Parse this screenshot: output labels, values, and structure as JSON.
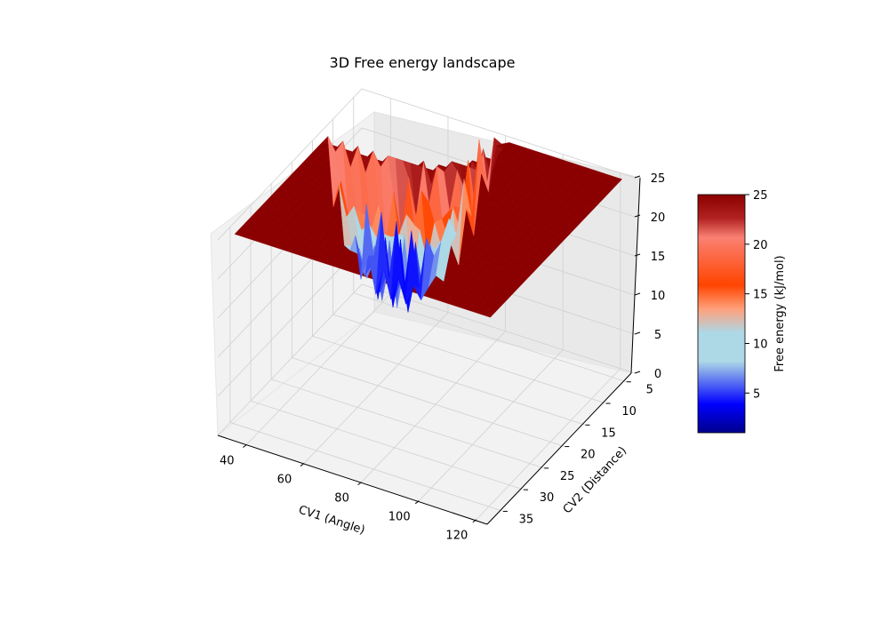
{
  "chart_data": {
    "type": "surface3d",
    "title": "3D Free energy landscape",
    "xlabel": "CV1 (Angle)",
    "ylabel": "CV2 (Distance)",
    "zlabel": "",
    "xlim": [
      30,
      125
    ],
    "ylim": [
      3,
      38
    ],
    "zlim": [
      0,
      25
    ],
    "x_ticks": [
      "40",
      "60",
      "80",
      "100",
      "120"
    ],
    "y_ticks": [
      "5",
      "10",
      "15",
      "20",
      "25",
      "30",
      "35"
    ],
    "z_ticks": [
      "0",
      "5",
      "10",
      "15",
      "20",
      "25"
    ],
    "surface": {
      "cap": 25,
      "min": 1,
      "x_range": [
        33,
        122
      ],
      "y_range": [
        4,
        36
      ],
      "plateau_region": "CV2 above ~22 (excluding CV1 115-122) is capped at 25",
      "basin_center_low": [
        45,
        6
      ],
      "basin_center_mid": [
        105,
        32
      ]
    },
    "colorbar": {
      "label": "Free energy (kJ/mol)",
      "ticks": [
        "5",
        "10",
        "15",
        "20",
        "25"
      ],
      "range": [
        1,
        25
      ],
      "colors": [
        {
          "stop": 0.0,
          "color": "#00008b"
        },
        {
          "stop": 0.12,
          "color": "#0000ff"
        },
        {
          "stop": 0.3,
          "color": "#add8e6"
        },
        {
          "stop": 0.42,
          "color": "#add8e6"
        },
        {
          "stop": 0.52,
          "color": "#ffa07a"
        },
        {
          "stop": 0.62,
          "color": "#ff4500"
        },
        {
          "stop": 0.82,
          "color": "#fa8072"
        },
        {
          "stop": 0.9,
          "color": "#b22222"
        },
        {
          "stop": 1.0,
          "color": "#8b0000"
        }
      ]
    },
    "grid": true
  }
}
